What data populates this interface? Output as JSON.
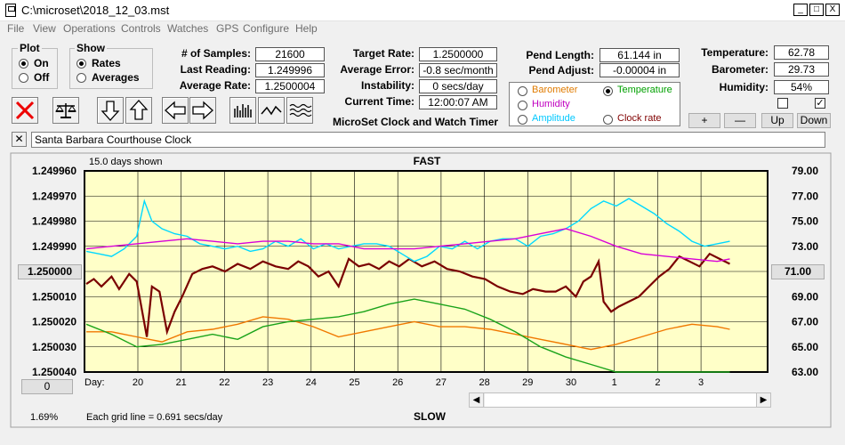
{
  "window": {
    "title": "C:\\microset\\2018_12_03.mst",
    "min": "_",
    "max": "□",
    "close": "X"
  },
  "menu": [
    "File",
    "View",
    "Operations",
    "Controls",
    "Watches",
    "GPS",
    "Configure",
    "Help"
  ],
  "plot": {
    "title": "Plot",
    "on": "On",
    "off": "Off",
    "selected": "On"
  },
  "show": {
    "title": "Show",
    "rates": "Rates",
    "averages": "Averages",
    "selected": "Rates"
  },
  "stats": {
    "samples_label": "# of Samples:",
    "samples": "21600",
    "last_label": "Last Reading:",
    "last": "1.249996",
    "avg_label": "Average Rate:",
    "avg": "1.2500004"
  },
  "target": {
    "rate_label": "Target Rate:",
    "rate": "1.2500000",
    "error_label": "Average Error:",
    "error": "-0.8 sec/month",
    "instab_label": "Instability:",
    "instab": "0 secs/day",
    "time_label": "Current Time:",
    "time": "12:00:07 AM",
    "app_caption": "MicroSet Clock and Watch Timer"
  },
  "pend": {
    "length_label": "Pend Length:",
    "length": "61.144 in",
    "adjust_label": "Pend Adjust:",
    "adjust": "-0.00004 in"
  },
  "sensor_options": [
    {
      "label": "Barometer",
      "color": "#e07b00",
      "selected": false
    },
    {
      "label": "Temperature",
      "color": "#00a000",
      "selected": true
    },
    {
      "label": "Humidity",
      "color": "#c000c0",
      "selected": false
    },
    {
      "label": "Clock rate",
      "color": "#800000",
      "selected": false
    },
    {
      "label": "Amplitude",
      "color": "#00c8ff",
      "selected": false
    }
  ],
  "env": {
    "temp_label": "Temperature:",
    "temp": "62.78",
    "baro_label": "Barometer:",
    "baro": "29.73",
    "hum_label": "Humidity:",
    "hum": "54%",
    "plus": "+",
    "minus": "—",
    "up": "Up",
    "down": "Down",
    "check1": "",
    "check2": "✓"
  },
  "clock_name": {
    "close": "✕",
    "value": "Santa Barbara Courthouse Clock"
  },
  "chart_data": {
    "type": "line",
    "top_left_label": "15.0 days shown",
    "top_center_label": "FAST",
    "bottom_center_label": "SLOW",
    "bottom_left_label": "1.69%",
    "grid_label": "Each grid line = 0.691 secs/day",
    "day_label": "Day:",
    "center_button": "1.250000",
    "left_button": "0",
    "right_button": "71.00",
    "left_axis": {
      "ticks": [
        "1.249960",
        "1.249970",
        "1.249980",
        "1.249990",
        "1.250000",
        "1.250010",
        "1.250020",
        "1.250030",
        "1.250040"
      ],
      "range": [
        1.25004,
        1.24996
      ]
    },
    "right_axis": {
      "ticks": [
        "79.00",
        "77.00",
        "75.00",
        "73.00",
        "71.00",
        "69.00",
        "67.00",
        "65.00",
        "63.00"
      ],
      "range": [
        63,
        79
      ]
    },
    "x_ticks": [
      "20",
      "21",
      "22",
      "23",
      "24",
      "25",
      "26",
      "27",
      "28",
      "29",
      "30",
      "1",
      "2",
      "3"
    ],
    "series": [
      {
        "color": "#7a0000",
        "points": [
          [
            0,
            1.250005
          ],
          [
            0.3,
            1.250003
          ],
          [
            0.6,
            1.250006
          ],
          [
            1.0,
            1.250002
          ],
          [
            1.3,
            1.250007
          ],
          [
            1.7,
            1.250001
          ],
          [
            2.0,
            1.250004
          ],
          [
            2.4,
            1.250026
          ],
          [
            2.6,
            1.250006
          ],
          [
            2.9,
            1.250008
          ],
          [
            3.2,
            1.250024
          ],
          [
            3.5,
            1.250016
          ],
          [
            3.8,
            1.25001
          ],
          [
            4.2,
            1.250001
          ],
          [
            4.6,
            1.249999
          ],
          [
            5.0,
            1.249998
          ],
          [
            5.5,
            1.25
          ],
          [
            6.0,
            1.249997
          ],
          [
            6.5,
            1.249999
          ],
          [
            7.0,
            1.249996
          ],
          [
            7.5,
            1.249998
          ],
          [
            8.0,
            1.249999
          ],
          [
            8.4,
            1.249996
          ],
          [
            8.8,
            1.249998
          ],
          [
            9.2,
            1.250002
          ],
          [
            9.6,
            1.25
          ],
          [
            10.0,
            1.250006
          ],
          [
            10.4,
            1.249995
          ],
          [
            10.8,
            1.249998
          ],
          [
            11.2,
            1.249997
          ],
          [
            11.6,
            1.249999
          ],
          [
            12.0,
            1.249996
          ],
          [
            12.4,
            1.249998
          ],
          [
            12.8,
            1.249995
          ],
          [
            13.3,
            1.249998
          ],
          [
            13.8,
            1.249996
          ],
          [
            14.3,
            1.249999
          ],
          [
            14.8,
            1.25
          ],
          [
            15.3,
            1.250002
          ],
          [
            15.8,
            1.250003
          ],
          [
            16.3,
            1.250006
          ],
          [
            16.8,
            1.250008
          ],
          [
            17.3,
            1.250009
          ],
          [
            17.7,
            1.250007
          ],
          [
            18.2,
            1.250008
          ],
          [
            18.6,
            1.250008
          ],
          [
            19.0,
            1.250006
          ],
          [
            19.4,
            1.25001
          ],
          [
            19.7,
            1.250004
          ],
          [
            20.0,
            1.250002
          ],
          [
            20.3,
            1.249996
          ],
          [
            20.5,
            1.250012
          ],
          [
            20.8,
            1.250016
          ],
          [
            21.1,
            1.250014
          ],
          [
            21.5,
            1.250012
          ],
          [
            21.9,
            1.25001
          ],
          [
            22.3,
            1.250006
          ],
          [
            22.7,
            1.250002
          ],
          [
            23.1,
            1.249999
          ],
          [
            23.5,
            1.249994
          ],
          [
            23.9,
            1.249996
          ],
          [
            24.3,
            1.249998
          ],
          [
            24.7,
            1.249993
          ],
          [
            25.1,
            1.249995
          ],
          [
            25.5,
            1.249997
          ]
        ]
      },
      {
        "color": "#00d8ff",
        "points": [
          [
            0,
            1.249992
          ],
          [
            0.5,
            1.249993
          ],
          [
            1.0,
            1.249994
          ],
          [
            1.5,
            1.249991
          ],
          [
            2.0,
            1.249986
          ],
          [
            2.3,
            1.249972
          ],
          [
            2.6,
            1.24998
          ],
          [
            3.0,
            1.249983
          ],
          [
            3.5,
            1.249985
          ],
          [
            4.0,
            1.249986
          ],
          [
            4.5,
            1.249989
          ],
          [
            5.0,
            1.24999
          ],
          [
            5.5,
            1.249991
          ],
          [
            6.0,
            1.24999
          ],
          [
            6.5,
            1.249992
          ],
          [
            7.0,
            1.249991
          ],
          [
            7.5,
            1.249988
          ],
          [
            8.0,
            1.24999
          ],
          [
            8.5,
            1.249987
          ],
          [
            9.0,
            1.249991
          ],
          [
            9.5,
            1.249989
          ],
          [
            10.0,
            1.249991
          ],
          [
            10.5,
            1.24999
          ],
          [
            11.0,
            1.249989
          ],
          [
            11.5,
            1.249989
          ],
          [
            12.0,
            1.24999
          ],
          [
            12.5,
            1.249993
          ],
          [
            13.0,
            1.249996
          ],
          [
            13.5,
            1.249994
          ],
          [
            14.0,
            1.24999
          ],
          [
            14.5,
            1.249991
          ],
          [
            15.0,
            1.249988
          ],
          [
            15.5,
            1.249991
          ],
          [
            16.0,
            1.249988
          ],
          [
            16.5,
            1.249987
          ],
          [
            17.0,
            1.249987
          ],
          [
            17.5,
            1.24999
          ],
          [
            18.0,
            1.249986
          ],
          [
            18.5,
            1.249985
          ],
          [
            19.0,
            1.249983
          ],
          [
            19.5,
            1.24998
          ],
          [
            20.0,
            1.249975
          ],
          [
            20.5,
            1.249972
          ],
          [
            21.0,
            1.249974
          ],
          [
            21.5,
            1.249971
          ],
          [
            22.0,
            1.249974
          ],
          [
            22.5,
            1.249977
          ],
          [
            23.0,
            1.249981
          ],
          [
            23.5,
            1.249984
          ],
          [
            24.0,
            1.249988
          ],
          [
            24.5,
            1.24999
          ],
          [
            25.0,
            1.249989
          ],
          [
            25.5,
            1.249988
          ]
        ]
      },
      {
        "color": "#d800d8",
        "points": [
          [
            0,
            1.249991
          ],
          [
            1.0,
            1.24999
          ],
          [
            2.0,
            1.249989
          ],
          [
            3.0,
            1.249988
          ],
          [
            4.0,
            1.249987
          ],
          [
            5.0,
            1.249988
          ],
          [
            6.0,
            1.249989
          ],
          [
            7.0,
            1.249988
          ],
          [
            8.0,
            1.249988
          ],
          [
            9.0,
            1.249989
          ],
          [
            10.0,
            1.249989
          ],
          [
            11.0,
            1.249991
          ],
          [
            12.0,
            1.249991
          ],
          [
            13.0,
            1.249991
          ],
          [
            14.0,
            1.24999
          ],
          [
            15.0,
            1.249989
          ],
          [
            16.0,
            1.249988
          ],
          [
            17.0,
            1.249987
          ],
          [
            18.0,
            1.249985
          ],
          [
            19.0,
            1.249983
          ],
          [
            20.0,
            1.249986
          ],
          [
            21.0,
            1.24999
          ],
          [
            22.0,
            1.249993
          ],
          [
            23.0,
            1.249994
          ],
          [
            24.0,
            1.249995
          ],
          [
            25.0,
            1.249996
          ],
          [
            25.5,
            1.249995
          ]
        ]
      },
      {
        "color": "#f07800",
        "points": [
          [
            0,
            1.250024
          ],
          [
            1.0,
            1.250024
          ],
          [
            2.0,
            1.250026
          ],
          [
            3.0,
            1.250028
          ],
          [
            4.0,
            1.250024
          ],
          [
            5.0,
            1.250023
          ],
          [
            6.0,
            1.250021
          ],
          [
            7.0,
            1.250018
          ],
          [
            8.0,
            1.250019
          ],
          [
            9.0,
            1.250022
          ],
          [
            10.0,
            1.250026
          ],
          [
            11.0,
            1.250024
          ],
          [
            12.0,
            1.250022
          ],
          [
            13.0,
            1.25002
          ],
          [
            14.0,
            1.250022
          ],
          [
            15.0,
            1.250022
          ],
          [
            16.0,
            1.250023
          ],
          [
            17.0,
            1.250025
          ],
          [
            18.0,
            1.250027
          ],
          [
            19.0,
            1.250029
          ],
          [
            20.0,
            1.250031
          ],
          [
            21.0,
            1.250029
          ],
          [
            22.0,
            1.250026
          ],
          [
            23.0,
            1.250023
          ],
          [
            24.0,
            1.250021
          ],
          [
            25.0,
            1.250022
          ],
          [
            25.5,
            1.250023
          ]
        ]
      },
      {
        "color": "#1aa31a",
        "points": [
          [
            0,
            1.250021
          ],
          [
            1.0,
            1.250025
          ],
          [
            2.0,
            1.25003
          ],
          [
            3.0,
            1.250029
          ],
          [
            4.0,
            1.250027
          ],
          [
            5.0,
            1.250025
          ],
          [
            6.0,
            1.250027
          ],
          [
            7.0,
            1.250022
          ],
          [
            8.0,
            1.25002
          ],
          [
            9.0,
            1.250019
          ],
          [
            10.0,
            1.250018
          ],
          [
            11.0,
            1.250016
          ],
          [
            12.0,
            1.250013
          ],
          [
            13.0,
            1.250011
          ],
          [
            14.0,
            1.250013
          ],
          [
            15.0,
            1.250015
          ],
          [
            16.0,
            1.250019
          ],
          [
            17.0,
            1.250024
          ],
          [
            18.0,
            1.25003
          ],
          [
            19.0,
            1.250034
          ],
          [
            20.0,
            1.250037
          ],
          [
            21.0,
            1.25004
          ],
          [
            22.0,
            1.25004
          ],
          [
            23.0,
            1.25004
          ],
          [
            24.0,
            1.25004
          ],
          [
            25.0,
            1.25004
          ],
          [
            25.5,
            1.25004
          ]
        ]
      }
    ]
  }
}
